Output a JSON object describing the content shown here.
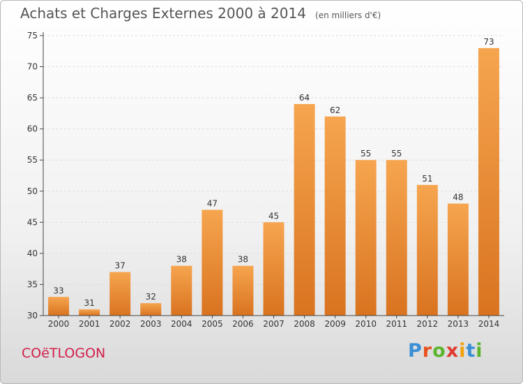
{
  "title": "Achats et Charges Externes 2000 à 2014",
  "subtitle": "(en milliers d'€)",
  "commune": "COëTLOGON",
  "brand": {
    "text": "Proxiti",
    "letter_colors": [
      "#3a8fd6",
      "#e8501e",
      "#5cb52e",
      "#e03a2e",
      "#f2a20d",
      "#3a8fd6",
      "#5cb52e"
    ]
  },
  "colors": {
    "bar_light": "#f6a54f",
    "bar_dark": "#d97320",
    "axis": "#444444",
    "grid": "#dddddd",
    "text": "#333333"
  },
  "chart_data": {
    "type": "bar",
    "categories": [
      "2000",
      "2001",
      "2002",
      "2003",
      "2004",
      "2005",
      "2006",
      "2007",
      "2008",
      "2009",
      "2010",
      "2011",
      "2012",
      "2013",
      "2014"
    ],
    "values": [
      33,
      31,
      37,
      32,
      38,
      47,
      38,
      45,
      64,
      62,
      55,
      55,
      51,
      48,
      73
    ],
    "ylim": [
      30,
      75
    ],
    "yticks": [
      30,
      35,
      40,
      45,
      50,
      55,
      60,
      65,
      70,
      75
    ],
    "grid": "horizontal dashed"
  }
}
